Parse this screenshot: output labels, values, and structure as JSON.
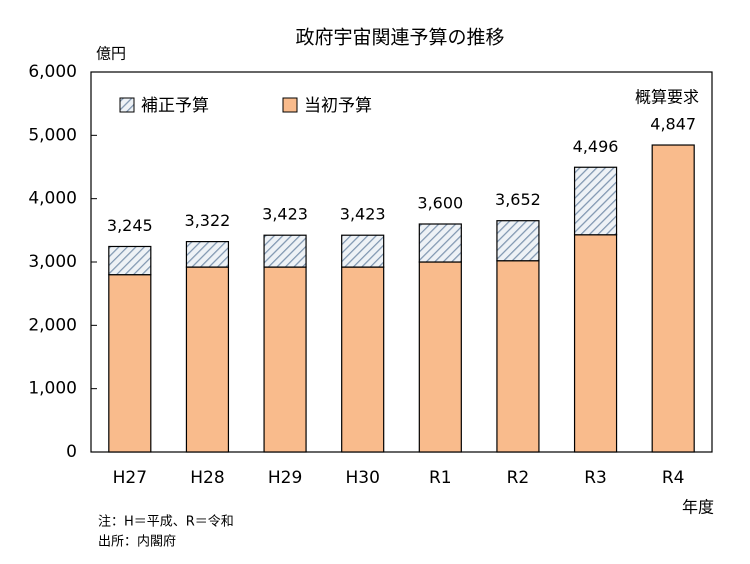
{
  "chart_data": {
    "type": "stacked-bar",
    "title": "政府宇宙関連予算の推移",
    "y_unit": "億円",
    "x_label": "年度",
    "annotation": "概算要求",
    "notes": [
      "注：H＝平成、R＝令和",
      "出所：内閣府"
    ],
    "categories": [
      "H27",
      "H28",
      "H29",
      "H30",
      "R1",
      "R2",
      "R3",
      "R4"
    ],
    "series": [
      {
        "name": "当初予算",
        "color": "#f9bb8c",
        "values": [
          2800,
          2920,
          2920,
          2920,
          3000,
          3020,
          3430,
          4847
        ]
      },
      {
        "name": "補正予算",
        "color": "#7f96b0",
        "values": [
          445,
          402,
          503,
          503,
          600,
          632,
          1066,
          null
        ]
      }
    ],
    "totals": [
      3245,
      3322,
      3423,
      3423,
      3600,
      3652,
      4496,
      4847
    ],
    "total_labels": [
      "3,245",
      "3,322",
      "3,423",
      "3,423",
      "3,600",
      "3,652",
      "4,496",
      "4,847"
    ],
    "ylim": [
      0,
      6000
    ],
    "yticks": [
      0,
      {
        "value": 1000,
        "label": "1,000"
      },
      {
        "value": 2000,
        "label": "2,000"
      },
      {
        "value": 3000,
        "label": "3,000"
      },
      {
        "value": 4000,
        "label": "4,000"
      },
      {
        "value": 5000,
        "label": "5,000"
      },
      {
        "value": 6000,
        "label": "6,000"
      }
    ],
    "grid": false
  }
}
